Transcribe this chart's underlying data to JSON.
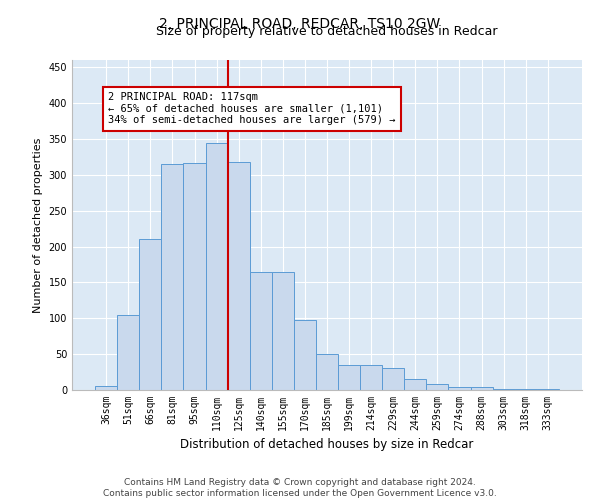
{
  "title": "2, PRINCIPAL ROAD, REDCAR, TS10 2GW",
  "subtitle": "Size of property relative to detached houses in Redcar",
  "xlabel": "Distribution of detached houses by size in Redcar",
  "ylabel": "Number of detached properties",
  "categories": [
    "36sqm",
    "51sqm",
    "66sqm",
    "81sqm",
    "95sqm",
    "110sqm",
    "125sqm",
    "140sqm",
    "155sqm",
    "170sqm",
    "185sqm",
    "199sqm",
    "214sqm",
    "229sqm",
    "244sqm",
    "259sqm",
    "274sqm",
    "288sqm",
    "303sqm",
    "318sqm",
    "333sqm"
  ],
  "values": [
    5,
    105,
    210,
    315,
    317,
    345,
    318,
    165,
    165,
    97,
    50,
    35,
    35,
    30,
    15,
    8,
    4,
    4,
    2,
    1,
    1
  ],
  "bar_color": "#c9d9ed",
  "bar_edge_color": "#5b9bd5",
  "vline_x": 6.0,
  "vline_color": "#cc0000",
  "annotation_text": "2 PRINCIPAL ROAD: 117sqm\n← 65% of detached houses are smaller (1,101)\n34% of semi-detached houses are larger (579) →",
  "annotation_box_color": "#ffffff",
  "annotation_box_edge": "#cc0000",
  "ylim": [
    0,
    460
  ],
  "yticks": [
    0,
    50,
    100,
    150,
    200,
    250,
    300,
    350,
    400,
    450
  ],
  "footer_text": "Contains HM Land Registry data © Crown copyright and database right 2024.\nContains public sector information licensed under the Open Government Licence v3.0.",
  "bg_color": "#ffffff",
  "plot_bg_color": "#dce9f5",
  "grid_color": "#ffffff",
  "title_fontsize": 10,
  "subtitle_fontsize": 9,
  "tick_fontsize": 7,
  "ylabel_fontsize": 8,
  "xlabel_fontsize": 8.5,
  "footer_fontsize": 6.5,
  "ann_fontsize": 7.5
}
